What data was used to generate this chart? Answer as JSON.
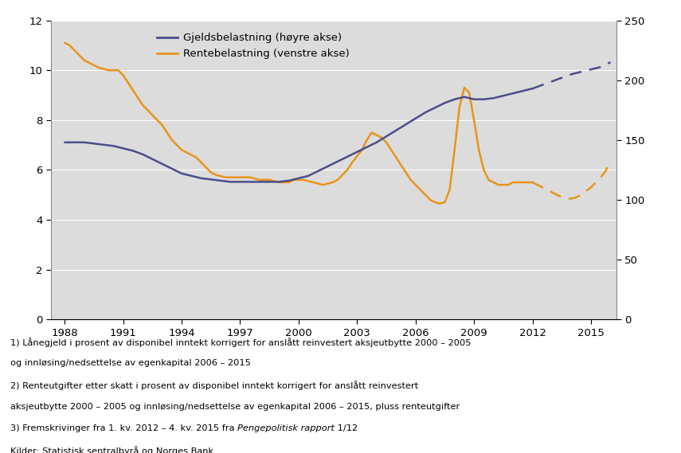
{
  "background_color": "#dcdcdc",
  "legend_colors": [
    "#4a4e8a",
    "#e8941a"
  ],
  "legend_labels": [
    "Gjeldsbelastning (høyre akse)",
    "Rentebelastning (venstre akse)"
  ],
  "left_ylim": [
    0,
    12
  ],
  "right_ylim": [
    0,
    250
  ],
  "left_yticks": [
    0,
    2,
    4,
    6,
    8,
    10,
    12
  ],
  "right_yticks": [
    0,
    50,
    100,
    150,
    200,
    250
  ],
  "xticks": [
    1988,
    1991,
    1994,
    1997,
    2000,
    2003,
    2006,
    2009,
    2012,
    2015
  ],
  "xlim": [
    1987.3,
    2016.3
  ],
  "footnotes_before_italic": "3) Fremskrivinger fra 1. kv. 2012 – 4. kv. 2015 fra ",
  "footnotes_italic": "Pengepolitisk rapport",
  "footnotes_after_italic": " 1/12",
  "gjelds_solid_x": [
    1988,
    1988.5,
    1989,
    1989.5,
    1990,
    1990.5,
    1991,
    1991.5,
    1992,
    1992.5,
    1993,
    1993.5,
    1994,
    1994.5,
    1995,
    1995.5,
    1996,
    1996.5,
    1997,
    1997.5,
    1998,
    1998.5,
    1999,
    1999.5,
    2000,
    2000.5,
    2001,
    2001.5,
    2002,
    2002.5,
    2003,
    2003.5,
    2004,
    2004.5,
    2005,
    2005.5,
    2006,
    2006.5,
    2007,
    2007.5,
    2008,
    2008.5,
    2009,
    2009.5,
    2010,
    2010.5,
    2011,
    2011.5,
    2012
  ],
  "gjelds_solid_y": [
    148,
    148,
    148,
    147,
    146,
    145,
    143,
    141,
    138,
    134,
    130,
    126,
    122,
    120,
    118,
    117,
    116,
    115,
    115,
    115,
    115,
    115,
    115,
    116,
    118,
    120,
    124,
    128,
    132,
    136,
    140,
    144,
    148,
    153,
    158,
    163,
    168,
    173,
    177,
    181,
    184,
    186,
    184,
    184,
    185,
    187,
    189,
    191,
    193
  ],
  "gjelds_dashed_x": [
    2012,
    2012.5,
    2013,
    2013.5,
    2014,
    2014.5,
    2015,
    2015.5,
    2016
  ],
  "gjelds_dashed_y": [
    193,
    196,
    199,
    202,
    205,
    207,
    209,
    211,
    215
  ],
  "rente_solid_x": [
    1988,
    1988.25,
    1988.5,
    1988.75,
    1989,
    1989.25,
    1989.5,
    1989.75,
    1990,
    1990.25,
    1990.5,
    1990.75,
    1991,
    1991.25,
    1991.5,
    1991.75,
    1992,
    1992.25,
    1992.5,
    1992.75,
    1993,
    1993.25,
    1993.5,
    1993.75,
    1994,
    1994.25,
    1994.5,
    1994.75,
    1995,
    1995.25,
    1995.5,
    1995.75,
    1996,
    1996.25,
    1996.5,
    1996.75,
    1997,
    1997.25,
    1997.5,
    1997.75,
    1998,
    1998.25,
    1998.5,
    1998.75,
    1999,
    1999.25,
    1999.5,
    1999.75,
    2000,
    2000.25,
    2000.5,
    2000.75,
    2001,
    2001.25,
    2001.5,
    2001.75,
    2002,
    2002.25,
    2002.5,
    2002.75,
    2003,
    2003.25,
    2003.5,
    2003.75,
    2004,
    2004.25,
    2004.5,
    2004.75,
    2005,
    2005.25,
    2005.5,
    2005.75,
    2006,
    2006.25,
    2006.5,
    2006.75,
    2007,
    2007.25,
    2007.5,
    2007.75,
    2008,
    2008.25,
    2008.5,
    2008.75,
    2009,
    2009.25,
    2009.5,
    2009.75,
    2010,
    2010.25,
    2010.5,
    2010.75,
    2011,
    2011.25,
    2011.5,
    2011.75,
    2012
  ],
  "rente_solid_y": [
    11.1,
    11.0,
    10.8,
    10.6,
    10.4,
    10.3,
    10.2,
    10.1,
    10.05,
    10.0,
    10.0,
    10.0,
    9.8,
    9.5,
    9.2,
    8.9,
    8.6,
    8.4,
    8.2,
    8.0,
    7.8,
    7.5,
    7.2,
    7.0,
    6.8,
    6.7,
    6.6,
    6.5,
    6.3,
    6.1,
    5.9,
    5.8,
    5.75,
    5.7,
    5.7,
    5.7,
    5.7,
    5.7,
    5.7,
    5.65,
    5.6,
    5.6,
    5.6,
    5.55,
    5.5,
    5.5,
    5.5,
    5.6,
    5.6,
    5.6,
    5.55,
    5.5,
    5.45,
    5.4,
    5.45,
    5.5,
    5.6,
    5.8,
    6.0,
    6.3,
    6.55,
    6.8,
    7.2,
    7.5,
    7.4,
    7.3,
    7.1,
    6.8,
    6.5,
    6.2,
    5.9,
    5.6,
    5.4,
    5.2,
    5.0,
    4.8,
    4.7,
    4.65,
    4.7,
    5.2,
    6.8,
    8.5,
    9.3,
    9.1,
    8.0,
    6.8,
    6.0,
    5.6,
    5.5,
    5.4,
    5.4,
    5.4,
    5.5,
    5.5,
    5.5,
    5.5,
    5.5
  ],
  "rente_dashed_x": [
    2012,
    2012.25,
    2012.5,
    2012.75,
    2013,
    2013.25,
    2013.5,
    2013.75,
    2014,
    2014.25,
    2014.5,
    2014.75,
    2015,
    2015.25,
    2015.5,
    2015.75,
    2016
  ],
  "rente_dashed_y": [
    5.5,
    5.4,
    5.3,
    5.2,
    5.1,
    5.0,
    4.9,
    4.85,
    4.85,
    4.9,
    5.0,
    5.15,
    5.3,
    5.5,
    5.7,
    5.95,
    6.4
  ]
}
